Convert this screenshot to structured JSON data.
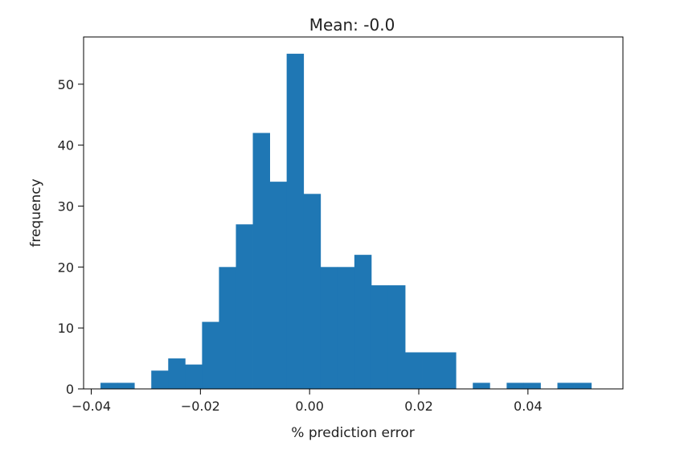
{
  "chart_data": {
    "type": "bar",
    "title": "Mean: -0.0",
    "xlabel": "% prediction error",
    "ylabel": "frequency",
    "xlim": [
      -0.0414,
      0.0574
    ],
    "ylim": [
      0,
      57.75
    ],
    "xticks": [
      {
        "value": -0.04,
        "label": "−0.04"
      },
      {
        "value": -0.02,
        "label": "−0.02"
      },
      {
        "value": 0.0,
        "label": "0.00"
      },
      {
        "value": 0.02,
        "label": "0.02"
      },
      {
        "value": 0.04,
        "label": "0.04"
      }
    ],
    "yticks": [
      {
        "value": 0,
        "label": "0"
      },
      {
        "value": 10,
        "label": "10"
      },
      {
        "value": 20,
        "label": "20"
      },
      {
        "value": 30,
        "label": "30"
      },
      {
        "value": 40,
        "label": "40"
      },
      {
        "value": 50,
        "label": "50"
      }
    ],
    "bin_edges": [
      -0.0383,
      -0.0352,
      -0.0321,
      -0.029,
      -0.0259,
      -0.0228,
      -0.0197,
      -0.0166,
      -0.0135,
      -0.0104,
      -0.0073,
      -0.0042,
      -0.0011,
      0.002,
      0.0051,
      0.0082,
      0.0113,
      0.0144,
      0.0175,
      0.0206,
      0.0237,
      0.0268,
      0.0299,
      0.033,
      0.0361,
      0.0392,
      0.0423,
      0.0454,
      0.0485,
      0.0516,
      0.0547
    ],
    "values": [
      1,
      1,
      0,
      3,
      5,
      4,
      11,
      20,
      27,
      42,
      34,
      55,
      32,
      20,
      20,
      22,
      17,
      17,
      6,
      6,
      6,
      0,
      1,
      0,
      1,
      1,
      0,
      1,
      1,
      0
    ],
    "grid": false,
    "colors": {
      "bar": "#1f77b4",
      "axes": "#000000",
      "text": "#222222"
    }
  }
}
